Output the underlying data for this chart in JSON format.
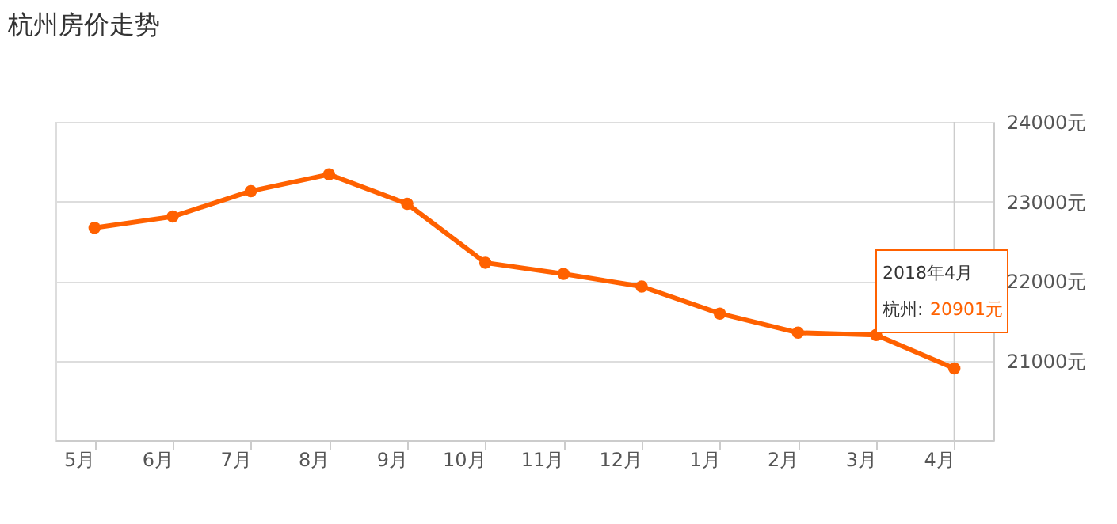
{
  "chart_data": {
    "type": "line",
    "title": "杭州房价走势",
    "categories": [
      "5月",
      "6月",
      "7月",
      "8月",
      "9月",
      "10月",
      "11月",
      "12月",
      "1月",
      "2月",
      "3月",
      "4月"
    ],
    "series": [
      {
        "name": "杭州:",
        "color": "#ff6100",
        "values": [
          22670,
          22810,
          23130,
          23340,
          22970,
          22230,
          22090,
          21930,
          21590,
          21350,
          21320,
          20901
        ],
        "value_labels": [
          null,
          null,
          null,
          null,
          null,
          null,
          null,
          null,
          null,
          null,
          null,
          "20901元"
        ]
      }
    ],
    "ylim": [
      20000,
      24000
    ],
    "yticks": [
      {
        "value": 21000,
        "label": "21000元"
      },
      {
        "value": 22000,
        "label": "22000元"
      },
      {
        "value": 23000,
        "label": "23000元"
      },
      {
        "value": 24000,
        "label": "24000元"
      }
    ],
    "ref_lines": [
      {
        "axis": "x",
        "value": "4月",
        "color": "#cccccc"
      }
    ],
    "annotations": [
      "2018年4月"
    ],
    "grid": "y",
    "marker": "circle",
    "line_style": "solid"
  }
}
